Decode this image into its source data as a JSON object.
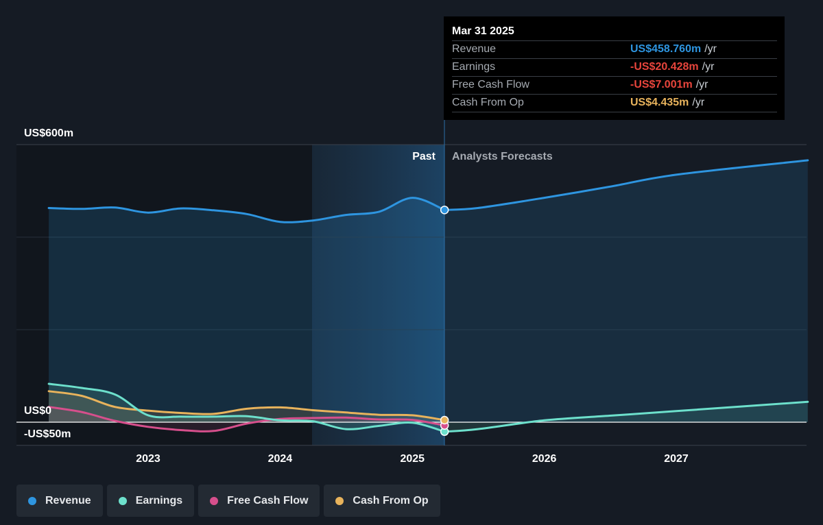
{
  "chart_data": {
    "type": "line",
    "ylim": [
      -50,
      600
    ],
    "y_tick_labels": [
      "US$600m",
      "US$0",
      "-US$50m"
    ],
    "x_tick_labels": [
      "2023",
      "2024",
      "2025",
      "2026",
      "2027"
    ],
    "grid": true,
    "legend_placement": "bottom",
    "region_labels": {
      "past": "Past",
      "forecast": "Analysts Forecasts"
    },
    "series": [
      {
        "name": "Revenue",
        "color": "#2e95e0",
        "points": [
          [
            "2022-04-01",
            463
          ],
          [
            "2022-07-01",
            461
          ],
          [
            "2022-10-01",
            464
          ],
          [
            "2023-01-01",
            453
          ],
          [
            "2023-04-01",
            462
          ],
          [
            "2023-07-01",
            458
          ],
          [
            "2023-10-01",
            450
          ],
          [
            "2024-01-01",
            433
          ],
          [
            "2024-04-01",
            436
          ],
          [
            "2024-07-01",
            448
          ],
          [
            "2024-10-01",
            455
          ],
          [
            "2025-01-01",
            485
          ],
          [
            "2025-03-31",
            458.76
          ]
        ],
        "forecast": [
          [
            "2025-03-31",
            458.76
          ],
          [
            "2025-07-01",
            463
          ],
          [
            "2026-01-01",
            485
          ],
          [
            "2026-07-01",
            509
          ],
          [
            "2027-01-01",
            535
          ],
          [
            "2027-12-31",
            566
          ]
        ]
      },
      {
        "name": "Earnings",
        "color": "#6de0cc",
        "points": [
          [
            "2022-04-01",
            83
          ],
          [
            "2022-07-01",
            74
          ],
          [
            "2022-10-01",
            60
          ],
          [
            "2023-01-01",
            15
          ],
          [
            "2023-04-01",
            12
          ],
          [
            "2023-07-01",
            12
          ],
          [
            "2023-10-01",
            13
          ],
          [
            "2024-01-01",
            4
          ],
          [
            "2024-04-01",
            2
          ],
          [
            "2024-07-01",
            -15
          ],
          [
            "2024-10-01",
            -8
          ],
          [
            "2025-01-01",
            -1
          ],
          [
            "2025-03-31",
            -20.428
          ]
        ],
        "forecast": [
          [
            "2025-03-31",
            -20.428
          ],
          [
            "2025-07-01",
            -15
          ],
          [
            "2026-01-01",
            4
          ],
          [
            "2026-07-01",
            14
          ],
          [
            "2027-01-01",
            24
          ],
          [
            "2027-12-31",
            44
          ]
        ]
      },
      {
        "name": "Free Cash Flow",
        "color": "#d64f8c",
        "points": [
          [
            "2022-04-01",
            33
          ],
          [
            "2022-07-01",
            22
          ],
          [
            "2022-10-01",
            3
          ],
          [
            "2023-01-01",
            -10
          ],
          [
            "2023-04-01",
            -17
          ],
          [
            "2023-07-01",
            -19
          ],
          [
            "2023-10-01",
            -3
          ],
          [
            "2024-01-01",
            7
          ],
          [
            "2024-04-01",
            9
          ],
          [
            "2024-07-01",
            10
          ],
          [
            "2024-10-01",
            6
          ],
          [
            "2025-01-01",
            5
          ],
          [
            "2025-03-31",
            -7.001
          ]
        ]
      },
      {
        "name": "Cash From Op",
        "color": "#e8b35c",
        "points": [
          [
            "2022-04-01",
            67
          ],
          [
            "2022-07-01",
            57
          ],
          [
            "2022-10-01",
            33
          ],
          [
            "2023-01-01",
            25
          ],
          [
            "2023-04-01",
            20
          ],
          [
            "2023-07-01",
            18
          ],
          [
            "2023-10-01",
            29
          ],
          [
            "2024-01-01",
            32
          ],
          [
            "2024-04-01",
            26
          ],
          [
            "2024-07-01",
            21
          ],
          [
            "2024-10-01",
            16
          ],
          [
            "2025-01-01",
            15
          ],
          [
            "2025-03-31",
            4.435
          ]
        ]
      }
    ]
  },
  "tooltip": {
    "date": "Mar 31 2025",
    "rows": [
      {
        "label": "Revenue",
        "value": "US$458.760m",
        "unit": "/yr",
        "color": "#2e95e0"
      },
      {
        "label": "Earnings",
        "value": "-US$20.428m",
        "unit": "/yr",
        "color": "#e8453c"
      },
      {
        "label": "Free Cash Flow",
        "value": "-US$7.001m",
        "unit": "/yr",
        "color": "#e8453c"
      },
      {
        "label": "Cash From Op",
        "value": "US$4.435m",
        "unit": "/yr",
        "color": "#e8b35c"
      }
    ]
  },
  "legend": [
    {
      "label": "Revenue",
      "color": "#2e95e0"
    },
    {
      "label": "Earnings",
      "color": "#6de0cc"
    },
    {
      "label": "Free Cash Flow",
      "color": "#d64f8c"
    },
    {
      "label": "Cash From Op",
      "color": "#e8b35c"
    }
  ]
}
